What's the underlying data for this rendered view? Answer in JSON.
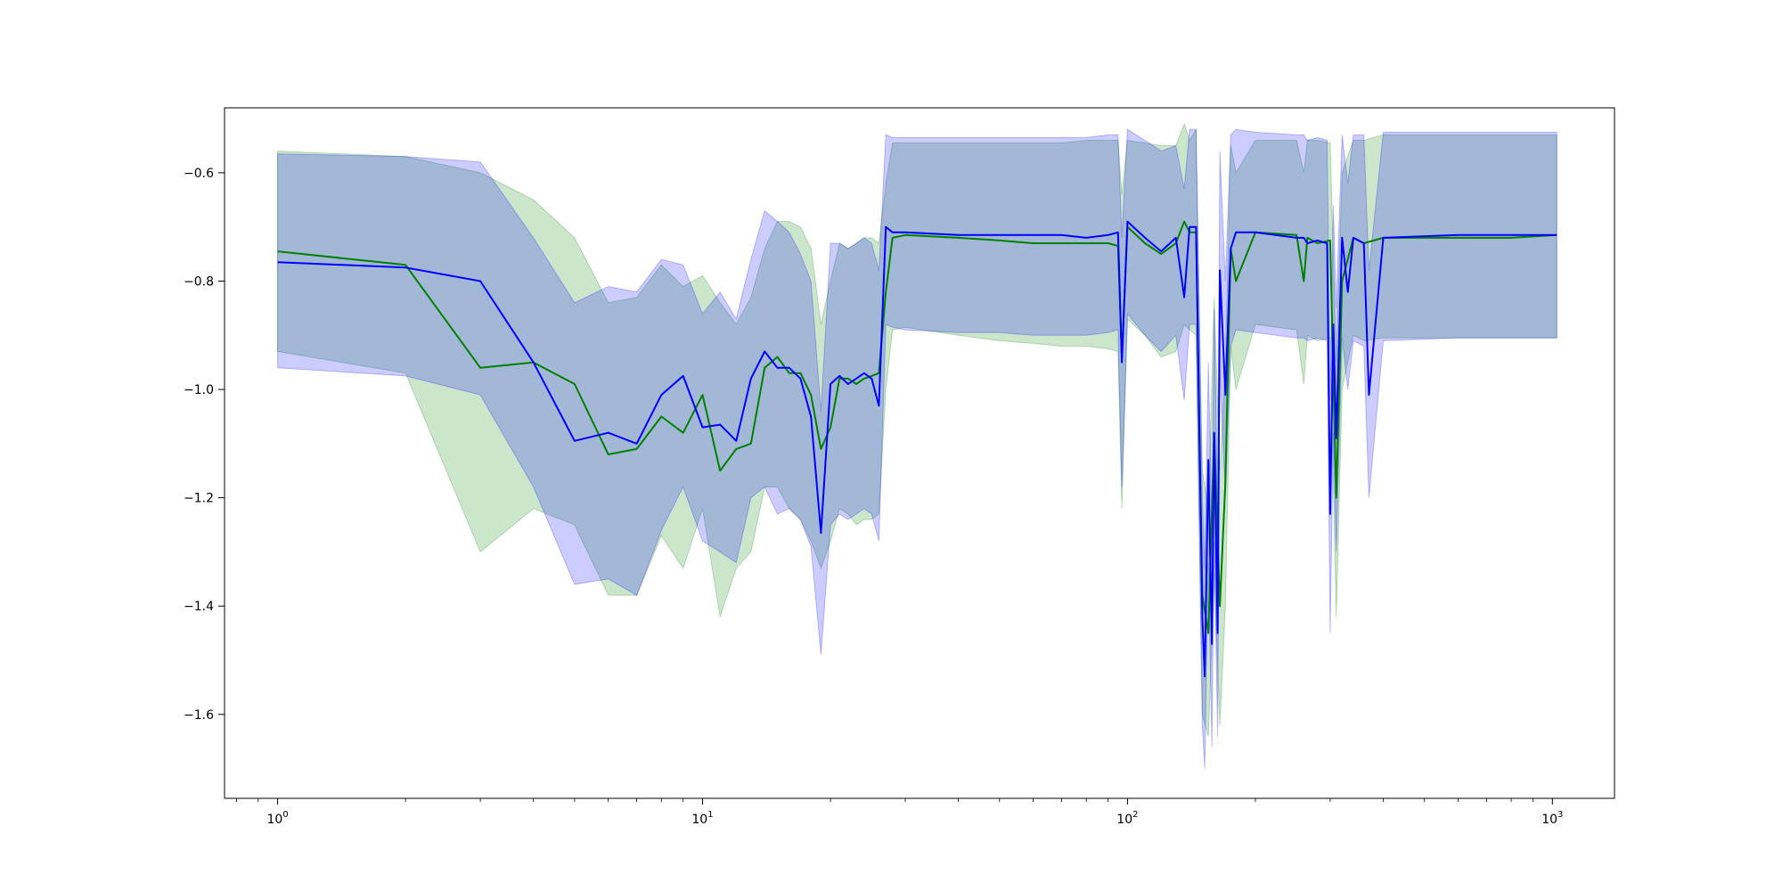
{
  "chart_data": {
    "type": "line",
    "title": "",
    "xlabel": "",
    "ylabel": "",
    "x_scale": "log",
    "xlim": [
      0.75,
      1400
    ],
    "ylim": [
      -1.755,
      -0.48
    ],
    "grid": false,
    "x_ticks": [
      {
        "value": 1,
        "base": "10",
        "exp": "0"
      },
      {
        "value": 10,
        "base": "10",
        "exp": "1"
      },
      {
        "value": 100,
        "base": "10",
        "exp": "2"
      },
      {
        "value": 1000,
        "base": "10",
        "exp": "3"
      }
    ],
    "y_ticks": [
      {
        "value": -0.6,
        "label": "−0.6"
      },
      {
        "value": -0.8,
        "label": "−0.8"
      },
      {
        "value": -1.0,
        "label": "−1.0"
      },
      {
        "value": -1.2,
        "label": "−1.2"
      },
      {
        "value": -1.4,
        "label": "−1.4"
      },
      {
        "value": -1.6,
        "label": "−1.6"
      }
    ],
    "series": [
      {
        "color": "#008000",
        "band_color": "#008000",
        "band_opacity": 0.2,
        "x": [
          1,
          2,
          3,
          4,
          5,
          6,
          7,
          8,
          9,
          10,
          11,
          12,
          13,
          14,
          15,
          16,
          17,
          18,
          19,
          20,
          21,
          22,
          23,
          24,
          25,
          26,
          27,
          28,
          30,
          40,
          50,
          60,
          70,
          80,
          90,
          95,
          97,
          100,
          110,
          120,
          130,
          136,
          140,
          145,
          150,
          155,
          160,
          165,
          170,
          175,
          180,
          200,
          250,
          260,
          265,
          280,
          300,
          310,
          320,
          340,
          360,
          400,
          600,
          800,
          1024
        ],
        "mean": [
          -0.745,
          -0.77,
          -0.96,
          -0.95,
          -0.99,
          -1.12,
          -1.11,
          -1.05,
          -1.08,
          -1.01,
          -1.15,
          -1.11,
          -1.1,
          -0.96,
          -0.94,
          -0.97,
          -0.97,
          -1.01,
          -1.11,
          -1.07,
          -0.98,
          -0.98,
          -0.99,
          -0.98,
          -0.975,
          -0.97,
          -0.82,
          -0.72,
          -0.715,
          -0.72,
          -0.725,
          -0.73,
          -0.73,
          -0.73,
          -0.73,
          -0.735,
          -0.94,
          -0.7,
          -0.73,
          -0.75,
          -0.73,
          -0.69,
          -0.71,
          -0.71,
          -1.38,
          -1.45,
          -1.08,
          -1.4,
          -1.17,
          -0.74,
          -0.8,
          -0.71,
          -0.715,
          -0.8,
          -0.72,
          -0.73,
          -0.725,
          -1.2,
          -0.8,
          -0.72,
          -0.73,
          -0.72,
          -0.72,
          -0.72,
          -0.715
        ],
        "upper": [
          -0.56,
          -0.57,
          -0.6,
          -0.65,
          -0.72,
          -0.84,
          -0.83,
          -0.77,
          -0.81,
          -0.79,
          -0.84,
          -0.88,
          -0.83,
          -0.74,
          -0.69,
          -0.69,
          -0.7,
          -0.74,
          -0.88,
          -0.8,
          -0.73,
          -0.74,
          -0.73,
          -0.72,
          -0.72,
          -0.73,
          -0.62,
          -0.545,
          -0.545,
          -0.545,
          -0.545,
          -0.545,
          -0.545,
          -0.54,
          -0.54,
          -0.54,
          -0.64,
          -0.54,
          -0.545,
          -0.55,
          -0.55,
          -0.51,
          -0.54,
          -0.52,
          -1.15,
          -1.22,
          -0.83,
          -1.15,
          -0.95,
          -0.55,
          -0.6,
          -0.54,
          -0.54,
          -0.6,
          -0.54,
          -0.54,
          -0.545,
          -0.95,
          -0.6,
          -0.54,
          -0.54,
          -0.53,
          -0.53,
          -0.53,
          -0.53
        ],
        "lower": [
          -0.93,
          -0.97,
          -1.3,
          -1.22,
          -1.25,
          -1.38,
          -1.38,
          -1.27,
          -1.33,
          -1.22,
          -1.42,
          -1.33,
          -1.3,
          -1.18,
          -1.18,
          -1.22,
          -1.24,
          -1.28,
          -1.33,
          -1.28,
          -1.22,
          -1.23,
          -1.25,
          -1.24,
          -1.24,
          -1.23,
          -1.0,
          -0.89,
          -0.885,
          -0.9,
          -0.91,
          -0.915,
          -0.92,
          -0.92,
          -0.925,
          -0.93,
          -1.22,
          -0.87,
          -0.9,
          -0.94,
          -0.93,
          -0.88,
          -0.89,
          -0.9,
          -1.6,
          -1.64,
          -1.34,
          -1.62,
          -1.4,
          -0.92,
          -1.0,
          -0.88,
          -0.89,
          -0.99,
          -0.9,
          -0.91,
          -0.905,
          -1.42,
          -1.0,
          -0.9,
          -0.91,
          -0.905,
          -0.905,
          -0.905,
          -0.905
        ]
      },
      {
        "color": "#0000ff",
        "band_color": "#0000ff",
        "band_opacity": 0.2,
        "x": [
          1,
          2,
          3,
          4,
          5,
          6,
          7,
          8,
          9,
          10,
          11,
          12,
          13,
          14,
          15,
          16,
          17,
          18,
          19,
          20,
          21,
          22,
          23,
          24,
          25,
          26,
          27,
          28,
          30,
          40,
          50,
          60,
          70,
          80,
          90,
          95,
          97,
          100,
          110,
          120,
          130,
          136,
          140,
          145,
          150,
          152,
          155,
          158,
          160,
          163,
          165,
          170,
          175,
          180,
          200,
          250,
          260,
          265,
          280,
          295,
          300,
          305,
          310,
          320,
          330,
          340,
          360,
          370,
          400,
          600,
          800,
          1024
        ],
        "mean": [
          -0.765,
          -0.775,
          -0.8,
          -0.95,
          -1.095,
          -1.08,
          -1.1,
          -1.01,
          -0.975,
          -1.07,
          -1.065,
          -1.095,
          -0.98,
          -0.93,
          -0.96,
          -0.96,
          -0.98,
          -1.05,
          -1.265,
          -0.99,
          -0.975,
          -0.99,
          -0.98,
          -0.97,
          -0.98,
          -1.03,
          -0.7,
          -0.71,
          -0.71,
          -0.715,
          -0.715,
          -0.715,
          -0.715,
          -0.72,
          -0.715,
          -0.71,
          -0.95,
          -0.69,
          -0.72,
          -0.745,
          -0.72,
          -0.83,
          -0.7,
          -0.7,
          -1.42,
          -1.53,
          -1.13,
          -1.47,
          -1.08,
          -1.45,
          -0.78,
          -1.01,
          -0.74,
          -0.71,
          -0.71,
          -0.72,
          -0.72,
          -0.73,
          -0.725,
          -0.73,
          -1.23,
          -0.88,
          -1.09,
          -0.72,
          -0.82,
          -0.72,
          -0.73,
          -1.01,
          -0.72,
          -0.715,
          -0.715,
          -0.715
        ],
        "upper": [
          -0.565,
          -0.57,
          -0.58,
          -0.72,
          -0.84,
          -0.81,
          -0.82,
          -0.76,
          -0.77,
          -0.86,
          -0.82,
          -0.87,
          -0.76,
          -0.67,
          -0.69,
          -0.71,
          -0.75,
          -0.8,
          -1.04,
          -0.73,
          -0.73,
          -0.74,
          -0.73,
          -0.72,
          -0.73,
          -0.78,
          -0.53,
          -0.535,
          -0.535,
          -0.535,
          -0.535,
          -0.535,
          -0.535,
          -0.535,
          -0.53,
          -0.53,
          -0.72,
          -0.52,
          -0.54,
          -0.56,
          -0.55,
          -0.63,
          -0.52,
          -0.52,
          -1.2,
          -1.33,
          -0.95,
          -1.25,
          -0.85,
          -1.22,
          -0.56,
          -0.8,
          -0.53,
          -0.52,
          -0.525,
          -0.53,
          -0.53,
          -0.54,
          -0.535,
          -0.54,
          -1.02,
          -0.66,
          -0.85,
          -0.53,
          -0.62,
          -0.53,
          -0.53,
          -0.78,
          -0.525,
          -0.525,
          -0.525,
          -0.525
        ],
        "lower": [
          -0.96,
          -0.975,
          -1.01,
          -1.18,
          -1.36,
          -1.35,
          -1.38,
          -1.26,
          -1.18,
          -1.28,
          -1.3,
          -1.32,
          -1.2,
          -1.18,
          -1.23,
          -1.22,
          -1.24,
          -1.29,
          -1.49,
          -1.25,
          -1.23,
          -1.24,
          -1.23,
          -1.22,
          -1.23,
          -1.28,
          -0.88,
          -0.885,
          -0.89,
          -0.895,
          -0.895,
          -0.9,
          -0.9,
          -0.9,
          -0.895,
          -0.89,
          -1.18,
          -0.86,
          -0.9,
          -0.93,
          -0.9,
          -1.02,
          -0.88,
          -0.88,
          -1.62,
          -1.7,
          -1.32,
          -1.66,
          -1.28,
          -1.64,
          -0.96,
          -1.2,
          -0.92,
          -0.89,
          -0.895,
          -0.905,
          -0.905,
          -0.91,
          -0.905,
          -0.91,
          -1.45,
          -1.08,
          -1.3,
          -0.905,
          -1.0,
          -0.91,
          -0.92,
          -1.2,
          -0.91,
          -0.905,
          -0.905,
          -0.905
        ]
      }
    ]
  }
}
